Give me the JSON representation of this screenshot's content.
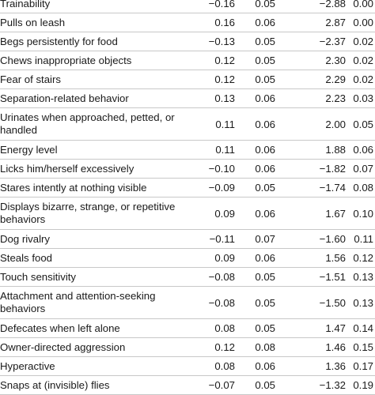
{
  "rows": [
    {
      "label": "Trainability",
      "coef": "−0.16",
      "se": "0.05",
      "t": "−2.88",
      "p": "0.00"
    },
    {
      "label": "Pulls on leash",
      "coef": "0.16",
      "se": "0.06",
      "t": "2.87",
      "p": "0.00"
    },
    {
      "label": "Begs persistently for food",
      "coef": "−0.13",
      "se": "0.05",
      "t": "−2.37",
      "p": "0.02"
    },
    {
      "label": "Chews inappropriate objects",
      "coef": "0.12",
      "se": "0.05",
      "t": "2.30",
      "p": "0.02"
    },
    {
      "label": "Fear of stairs",
      "coef": "0.12",
      "se": "0.05",
      "t": "2.29",
      "p": "0.02"
    },
    {
      "label": "Separation-related behavior",
      "coef": "0.13",
      "se": "0.06",
      "t": "2.23",
      "p": "0.03"
    },
    {
      "label": "Urinates when approached, petted, or handled",
      "coef": "0.11",
      "se": "0.06",
      "t": "2.00",
      "p": "0.05"
    },
    {
      "label": "Energy level",
      "coef": "0.11",
      "se": "0.06",
      "t": "1.88",
      "p": "0.06"
    },
    {
      "label": "Licks him/herself excessively",
      "coef": "−0.10",
      "se": "0.06",
      "t": "−1.82",
      "p": "0.07"
    },
    {
      "label": "Stares intently at nothing visible",
      "coef": "−0.09",
      "se": "0.05",
      "t": "−1.74",
      "p": "0.08"
    },
    {
      "label": "Displays bizarre, strange, or repetitive behaviors",
      "coef": "0.09",
      "se": "0.06",
      "t": "1.67",
      "p": "0.10"
    },
    {
      "label": "Dog rivalry",
      "coef": "−0.11",
      "se": "0.07",
      "t": "−1.60",
      "p": "0.11"
    },
    {
      "label": "Steals food",
      "coef": "0.09",
      "se": "0.06",
      "t": "1.56",
      "p": "0.12"
    },
    {
      "label": "Touch sensitivity",
      "coef": "−0.08",
      "se": "0.05",
      "t": "−1.51",
      "p": "0.13"
    },
    {
      "label": "Attachment and attention-seeking behaviors",
      "coef": "−0.08",
      "se": "0.05",
      "t": "−1.50",
      "p": "0.13"
    },
    {
      "label": "Defecates when left alone",
      "coef": "0.08",
      "se": "0.05",
      "t": "1.47",
      "p": "0.14"
    },
    {
      "label": "Owner-directed aggression",
      "coef": "0.12",
      "se": "0.08",
      "t": "1.46",
      "p": "0.15"
    },
    {
      "label": "Hyperactive",
      "coef": "0.08",
      "se": "0.06",
      "t": "1.36",
      "p": "0.17"
    },
    {
      "label": "Snaps at (invisible) flies",
      "coef": "−0.07",
      "se": "0.05",
      "t": "−1.32",
      "p": "0.19"
    }
  ]
}
